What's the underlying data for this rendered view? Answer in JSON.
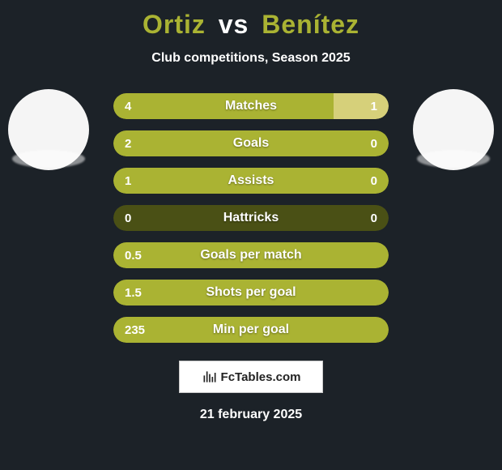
{
  "title": {
    "player1": "Ortiz",
    "vs": "vs",
    "player2": "Benítez"
  },
  "subtitle": "Club competitions, Season 2025",
  "colors": {
    "background": "#1c2228",
    "accent": "#aab333",
    "bar_empty": "#4a5015",
    "bar_left": "#aab333",
    "bar_right": "#d6d07a",
    "text": "#ffffff"
  },
  "stats": [
    {
      "label": "Matches",
      "left_val": "4",
      "right_val": "1",
      "left_pct": 80,
      "right_pct": 20
    },
    {
      "label": "Goals",
      "left_val": "2",
      "right_val": "0",
      "left_pct": 100,
      "right_pct": 0
    },
    {
      "label": "Assists",
      "left_val": "1",
      "right_val": "0",
      "left_pct": 100,
      "right_pct": 0
    },
    {
      "label": "Hattricks",
      "left_val": "0",
      "right_val": "0",
      "left_pct": 0,
      "right_pct": 0
    },
    {
      "label": "Goals per match",
      "left_val": "0.5",
      "right_val": "",
      "left_pct": 100,
      "right_pct": 0
    },
    {
      "label": "Shots per goal",
      "left_val": "1.5",
      "right_val": "",
      "left_pct": 100,
      "right_pct": 0
    },
    {
      "label": "Min per goal",
      "left_val": "235",
      "right_val": "",
      "left_pct": 100,
      "right_pct": 0
    }
  ],
  "footer": {
    "site": "FcTables.com",
    "date": "21 february 2025"
  }
}
